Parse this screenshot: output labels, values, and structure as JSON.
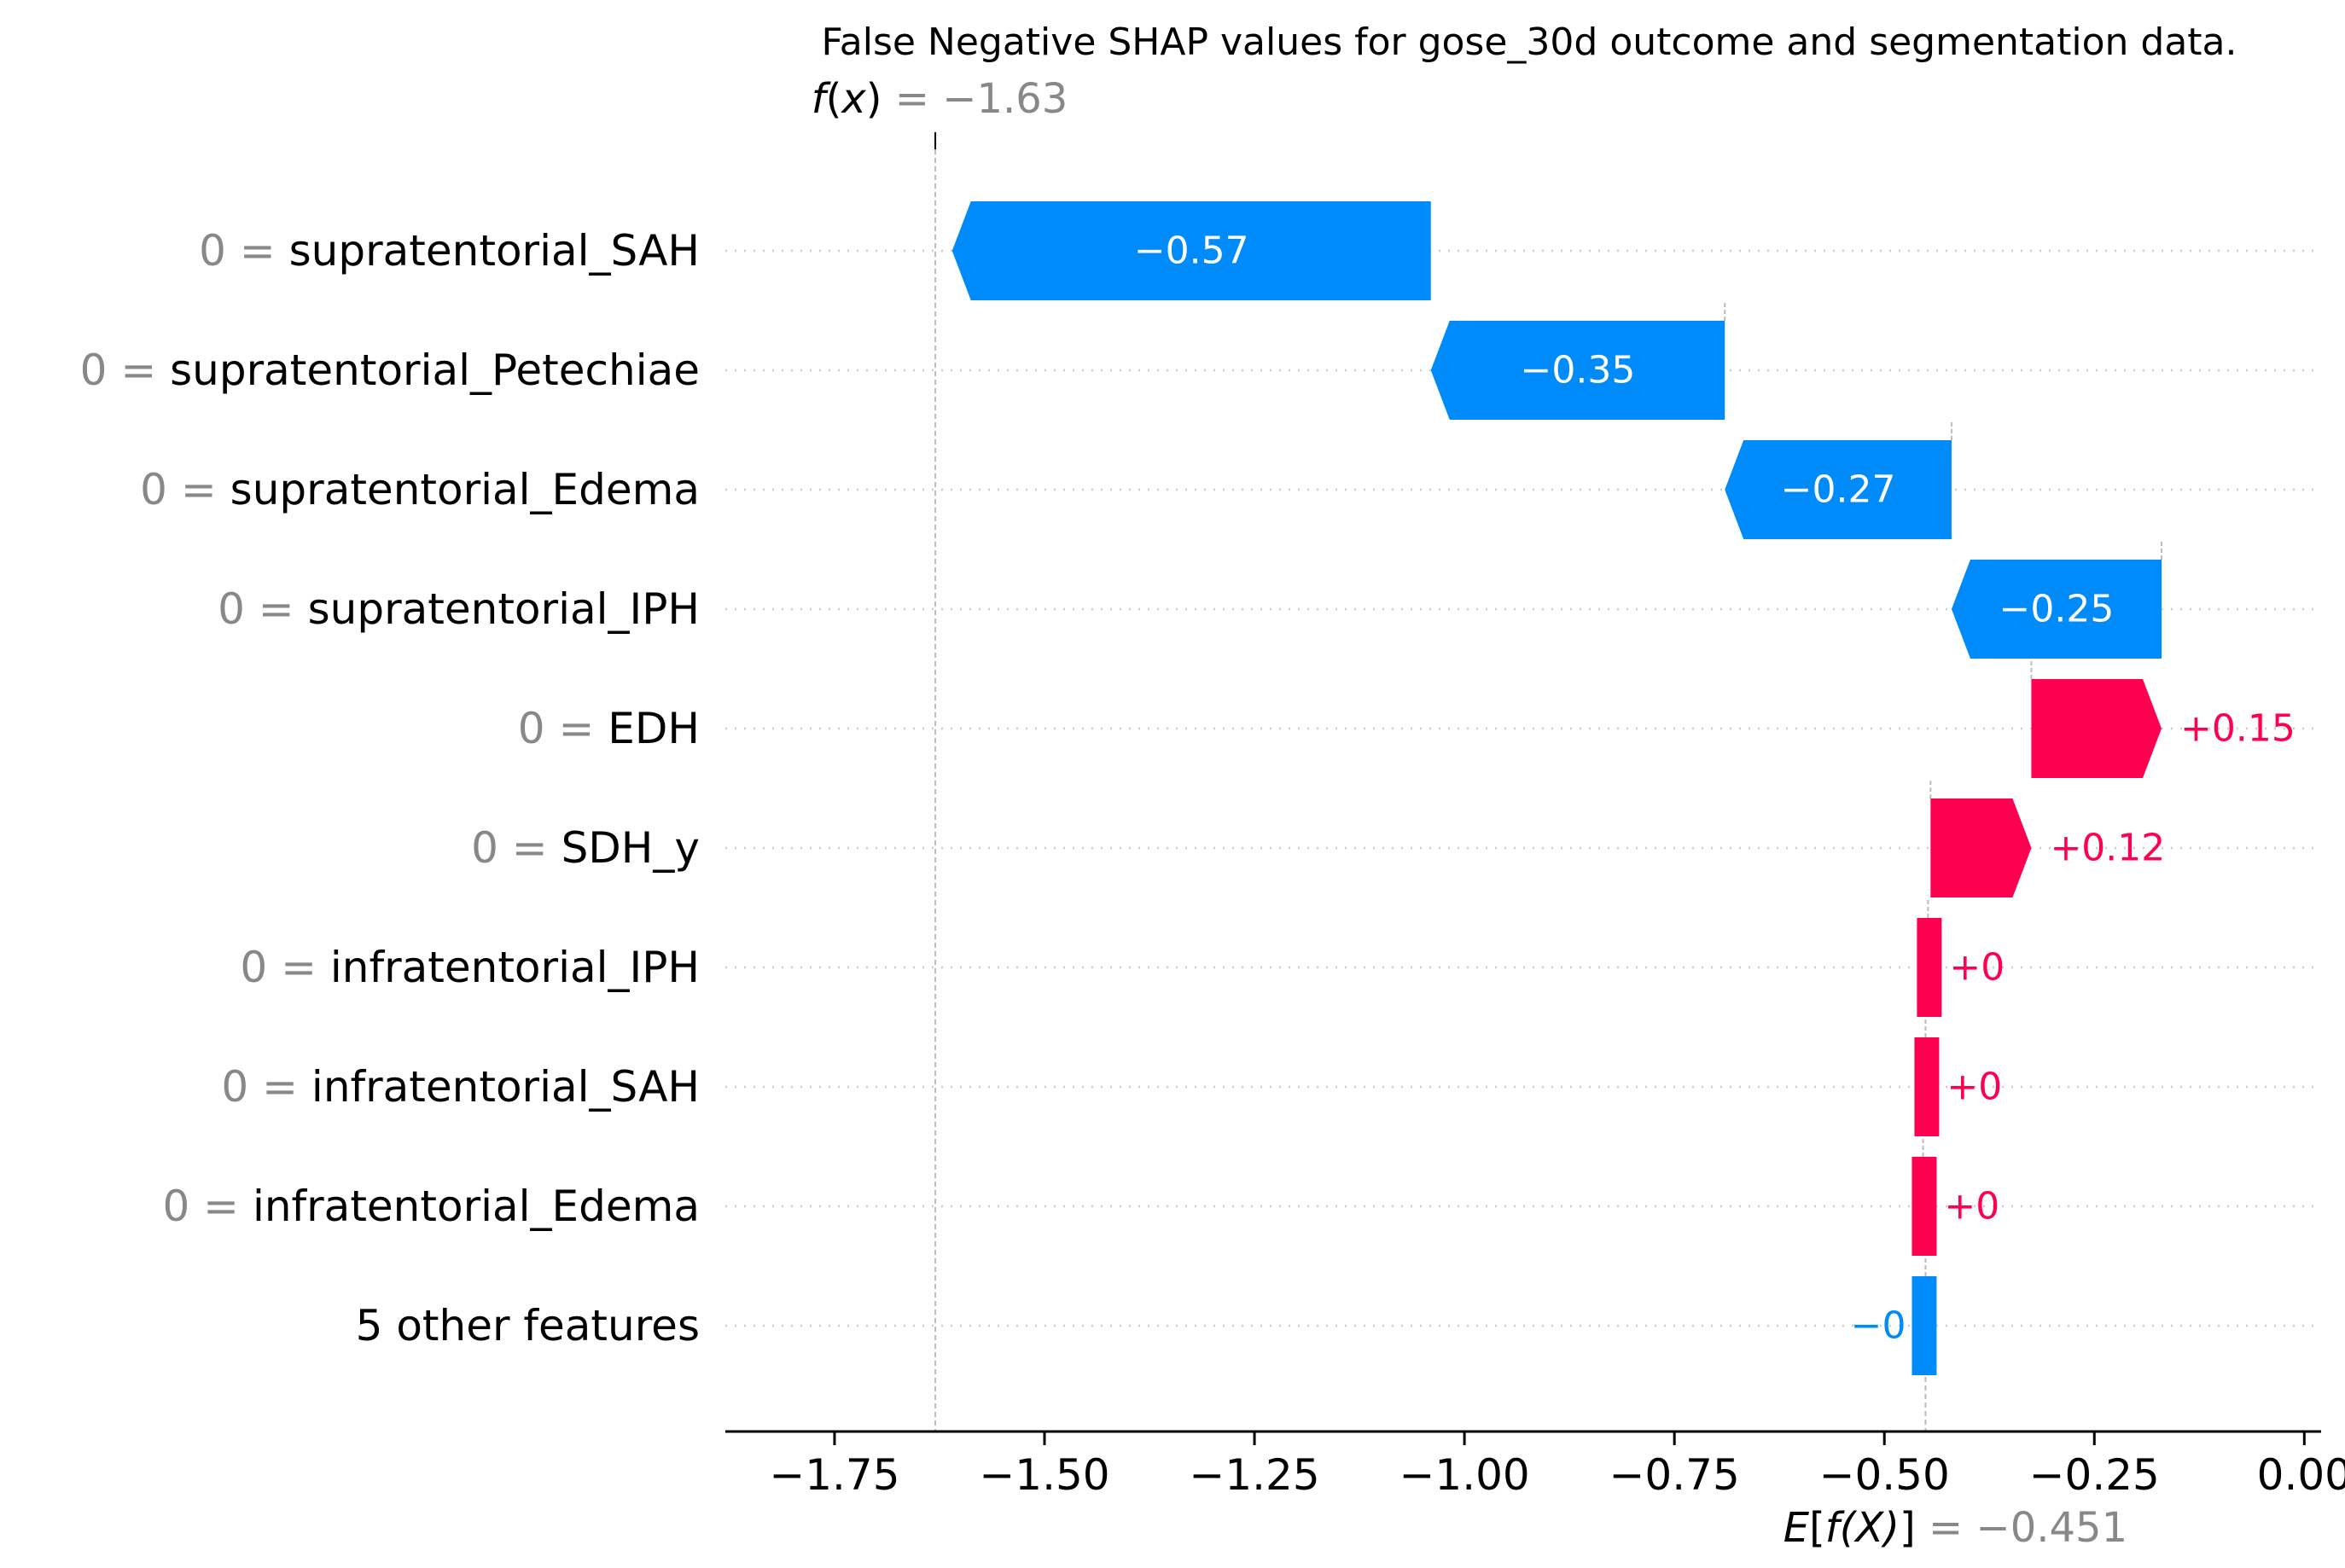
{
  "chart_data": {
    "type": "waterfall",
    "title": "False Negative SHAP values for gose_30d outcome and segmentation data.",
    "fx": {
      "label_fn": "f",
      "label_arg": "x",
      "value_text": "= −1.63",
      "value": -1.63
    },
    "base": {
      "label": "E[f(X)]",
      "label_fn": "E",
      "label_inner": "f(X)",
      "value_text": "= −0.451",
      "value": -0.451
    },
    "xlim": [
      -1.88,
      0.02
    ],
    "xticks": [
      -1.75,
      -1.5,
      -1.25,
      -1.0,
      -0.75,
      -0.5,
      -0.25,
      0.0
    ],
    "xtick_labels": [
      "−1.75",
      "−1.50",
      "−1.25",
      "−1.00",
      "−0.75",
      "−0.50",
      "−0.25",
      "0.00"
    ],
    "features": [
      {
        "value": "0 =",
        "name": "supratentorial_SAH",
        "shap": -0.57,
        "label": "−0.57"
      },
      {
        "value": "0 =",
        "name": "supratentorial_Petechiae",
        "shap": -0.35,
        "label": "−0.35"
      },
      {
        "value": "0 =",
        "name": "supratentorial_Edema",
        "shap": -0.27,
        "label": "−0.27"
      },
      {
        "value": "0 =",
        "name": "supratentorial_IPH",
        "shap": -0.25,
        "label": "−0.25"
      },
      {
        "value": "0 =",
        "name": "EDH",
        "shap": 0.155,
        "label": "+0.15"
      },
      {
        "value": "0 =",
        "name": "SDH_y",
        "shap": 0.12,
        "label": "+0.12"
      },
      {
        "value": "0 =",
        "name": "infratentorial_IPH",
        "shap": 0.003,
        "label": "+0"
      },
      {
        "value": "0 =",
        "name": "infratentorial_SAH",
        "shap": 0.003,
        "label": "+0"
      },
      {
        "value": "0 =",
        "name": "infratentorial_Edema",
        "shap": 0.003,
        "label": "+0"
      },
      {
        "value": "",
        "name": "5 other features",
        "shap": -0.003,
        "label": "−0"
      }
    ],
    "colors": {
      "negative": "#008bfb",
      "positive": "#ff0051",
      "gray": "#888888",
      "text": "#000000",
      "grid": "#cccccc"
    }
  }
}
